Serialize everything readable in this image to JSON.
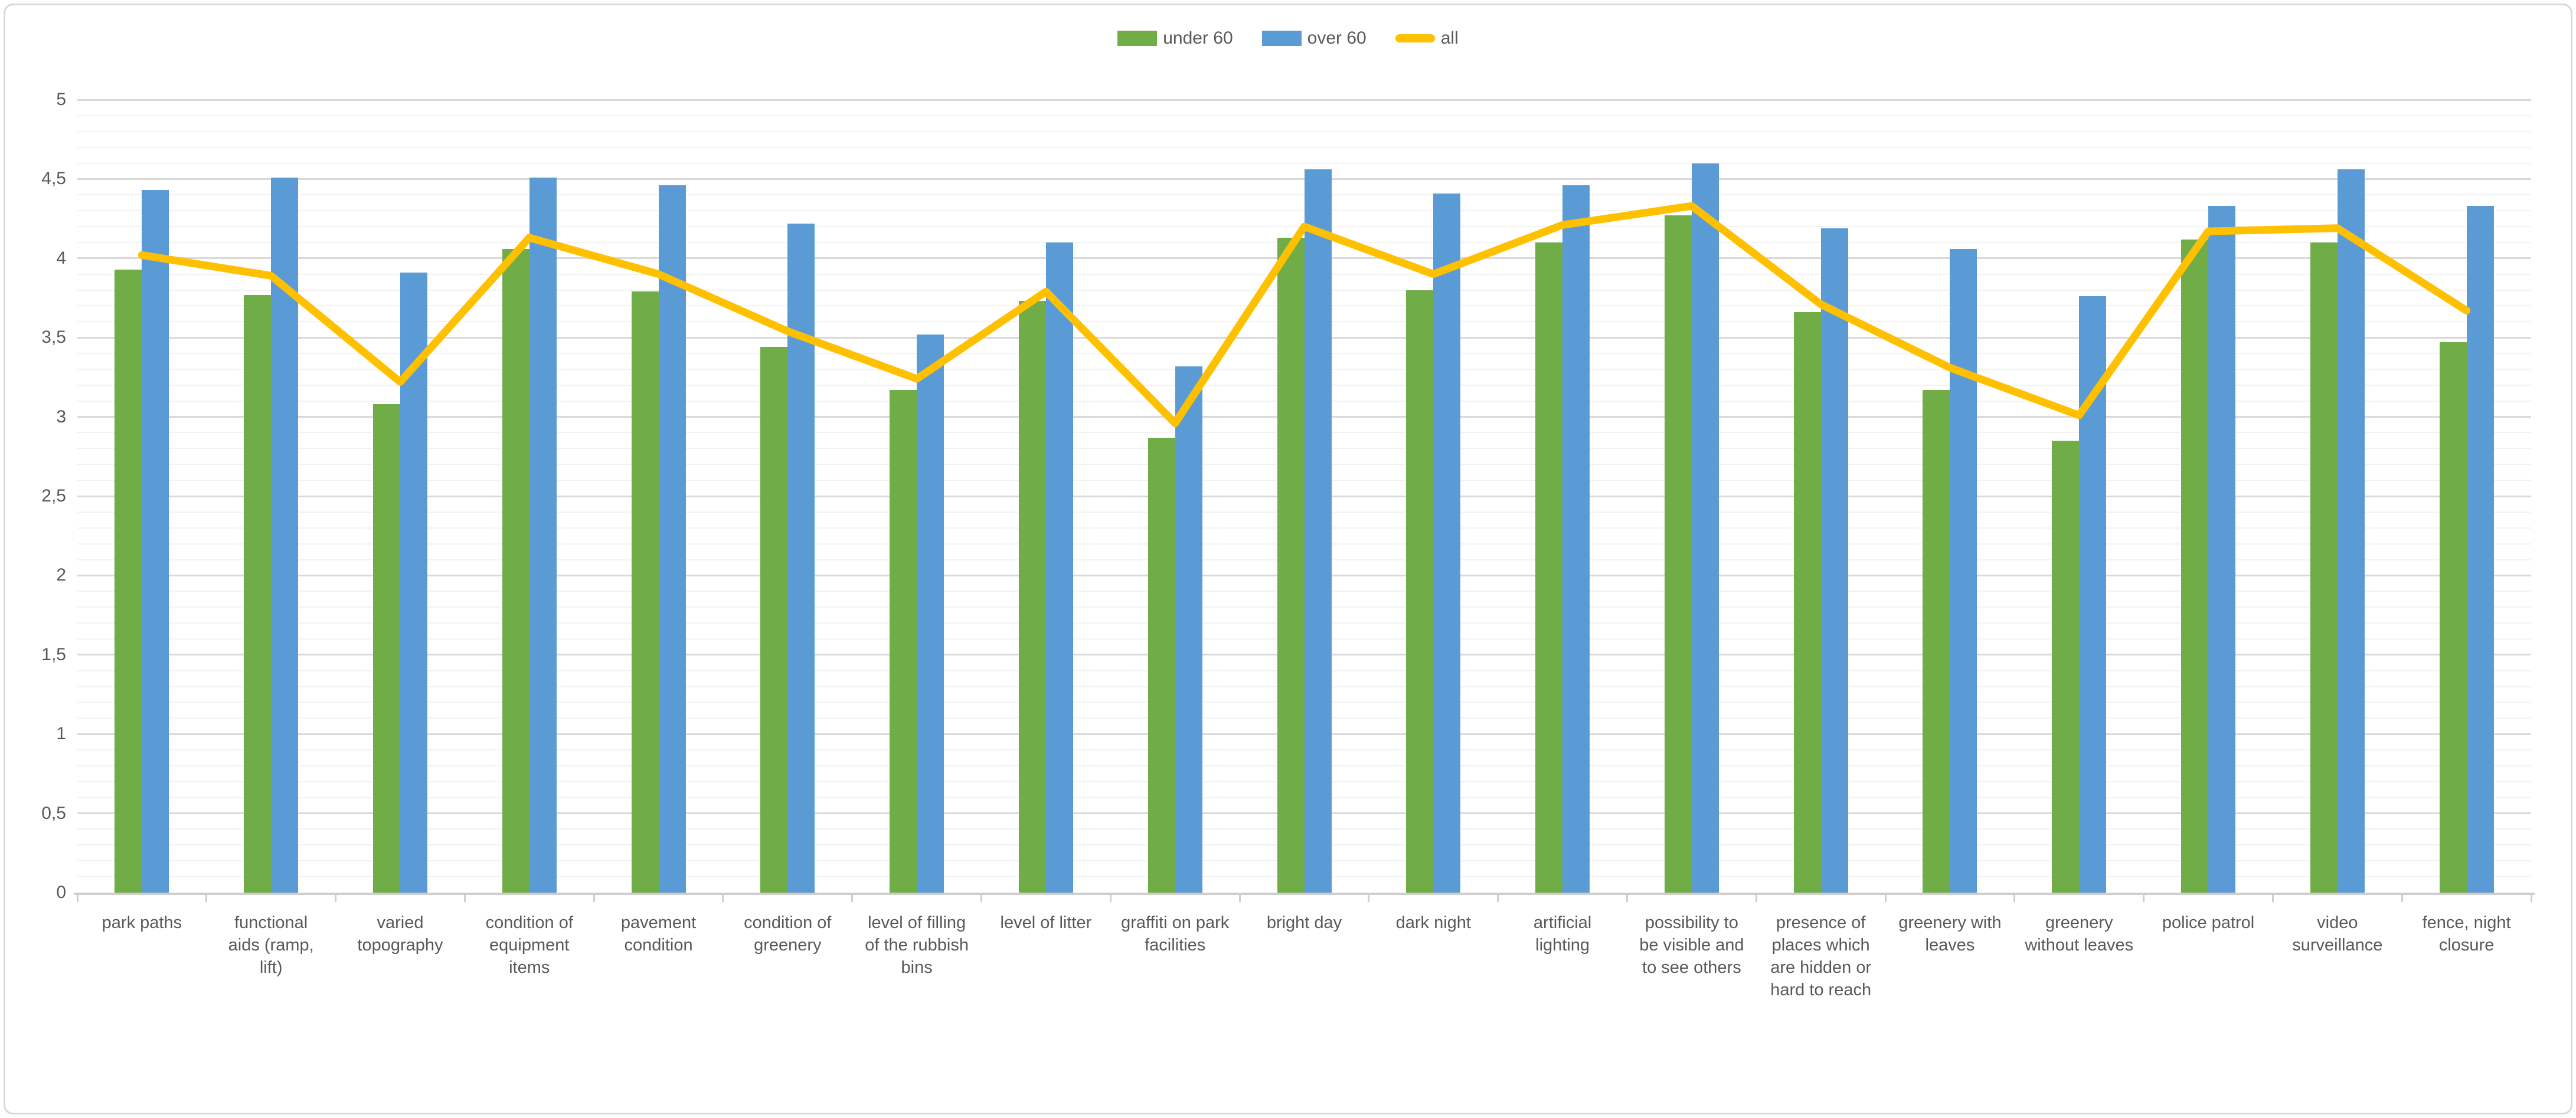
{
  "chart_data": {
    "type": "bar+line",
    "title": "",
    "categories": [
      "park paths",
      "functional aids (ramp, lift)",
      "varied topography",
      "condition of equipment items",
      "pavement condition",
      "condition of greenery",
      "level of filling of the rubbish bins",
      "level of litter",
      "graffiti on park facilities",
      "bright day",
      "dark night",
      "artificial lighting",
      "possibility to be visible and to see others",
      "presence of places which are hidden or hard to reach",
      "greenery with leaves",
      "greenery without leaves",
      "police patrol",
      "video surveillance",
      "fence, night closure"
    ],
    "series": [
      {
        "name": "under 60",
        "type": "bar",
        "color": "#70AD47",
        "values": [
          3.93,
          3.77,
          3.08,
          4.06,
          3.79,
          3.44,
          3.17,
          3.73,
          2.87,
          4.13,
          3.8,
          4.1,
          4.27,
          3.66,
          3.17,
          2.85,
          4.12,
          4.1,
          3.47
        ]
      },
      {
        "name": "over 60",
        "type": "bar",
        "color": "#5B9BD5",
        "values": [
          4.43,
          4.51,
          3.91,
          4.51,
          4.46,
          4.22,
          3.52,
          4.1,
          3.32,
          4.56,
          4.41,
          4.46,
          4.6,
          4.19,
          4.06,
          3.76,
          4.33,
          4.56,
          4.33
        ]
      },
      {
        "name": "all",
        "type": "line",
        "color": "#FFC000",
        "values": [
          4.02,
          3.89,
          3.22,
          4.13,
          3.9,
          3.54,
          3.24,
          3.79,
          2.96,
          4.2,
          3.9,
          4.21,
          4.33,
          3.71,
          3.31,
          3.01,
          4.17,
          4.19,
          3.67
        ]
      }
    ],
    "xlabel": "",
    "ylabel": "",
    "ylim": [
      0,
      5
    ],
    "ytick_values": [
      0,
      0.5,
      1,
      1.5,
      2,
      2.5,
      3,
      3.5,
      4,
      4.5,
      5
    ],
    "ytick_labels": [
      "0",
      "0,5",
      "1",
      "1,5",
      "2",
      "2,5",
      "3",
      "3,5",
      "4",
      "4,5",
      "5"
    ],
    "minor_tick_step": 0.1,
    "grid": "horizontal, major and minor",
    "legend_position": "top-center",
    "colors": {
      "major_gridline": "#D9D9D9",
      "minor_gridline": "#F2F2F2",
      "axis_line": "#CFCDCD",
      "text": "#595959",
      "background": "#FFFFFF",
      "border": "#D9D9D9"
    }
  }
}
